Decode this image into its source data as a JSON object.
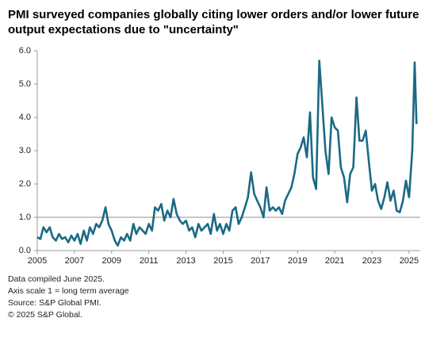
{
  "chart_data": {
    "type": "line",
    "title": [
      "PMI surveyed companies globally citing lower orders and/or lower future",
      "output expectations due to \"uncertainty\""
    ],
    "notes": [
      "Data compiled June 2025.",
      "Axis scale 1 = long term average",
      "Source: S&P Global PMI.",
      "© 2025 S&P Global."
    ],
    "x": [
      2005.0,
      2005.17,
      2005.33,
      2005.5,
      2005.67,
      2005.83,
      2006.0,
      2006.17,
      2006.33,
      2006.5,
      2006.67,
      2006.83,
      2007.0,
      2007.17,
      2007.33,
      2007.5,
      2007.67,
      2007.83,
      2008.0,
      2008.17,
      2008.33,
      2008.5,
      2008.67,
      2008.83,
      2009.0,
      2009.17,
      2009.33,
      2009.5,
      2009.67,
      2009.83,
      2010.0,
      2010.17,
      2010.33,
      2010.5,
      2010.67,
      2010.83,
      2011.0,
      2011.17,
      2011.33,
      2011.5,
      2011.67,
      2011.83,
      2012.0,
      2012.17,
      2012.33,
      2012.5,
      2012.67,
      2012.83,
      2013.0,
      2013.17,
      2013.33,
      2013.5,
      2013.67,
      2013.83,
      2014.0,
      2014.17,
      2014.33,
      2014.5,
      2014.67,
      2014.83,
      2015.0,
      2015.17,
      2015.33,
      2015.5,
      2015.67,
      2015.83,
      2016.0,
      2016.17,
      2016.33,
      2016.5,
      2016.67,
      2016.83,
      2017.0,
      2017.17,
      2017.33,
      2017.5,
      2017.67,
      2017.83,
      2018.0,
      2018.17,
      2018.33,
      2018.5,
      2018.67,
      2018.83,
      2019.0,
      2019.17,
      2019.33,
      2019.5,
      2019.67,
      2019.83,
      2020.0,
      2020.17,
      2020.33,
      2020.5,
      2020.67,
      2020.83,
      2021.0,
      2021.17,
      2021.33,
      2021.5,
      2021.67,
      2021.83,
      2022.0,
      2022.17,
      2022.33,
      2022.5,
      2022.67,
      2022.83,
      2023.0,
      2023.17,
      2023.33,
      2023.5,
      2023.67,
      2023.83,
      2024.0,
      2024.17,
      2024.33,
      2024.5,
      2024.67,
      2024.83,
      2025.0,
      2025.17,
      2025.3,
      2025.4
    ],
    "series": [
      {
        "color": "#1a6a84",
        "values": [
          0.4,
          0.35,
          0.7,
          0.55,
          0.7,
          0.4,
          0.3,
          0.5,
          0.35,
          0.4,
          0.25,
          0.45,
          0.3,
          0.5,
          0.2,
          0.6,
          0.3,
          0.7,
          0.5,
          0.8,
          0.7,
          0.9,
          1.3,
          0.8,
          0.6,
          0.3,
          0.15,
          0.4,
          0.3,
          0.5,
          0.3,
          0.8,
          0.5,
          0.7,
          0.6,
          0.5,
          0.8,
          0.6,
          1.3,
          1.2,
          1.4,
          0.9,
          1.2,
          1.0,
          1.55,
          1.1,
          0.9,
          0.8,
          0.9,
          0.6,
          0.7,
          0.4,
          0.8,
          0.6,
          0.7,
          0.8,
          0.5,
          1.1,
          0.6,
          0.8,
          0.5,
          0.8,
          0.6,
          1.2,
          1.3,
          0.8,
          1.0,
          1.3,
          1.6,
          2.35,
          1.7,
          1.5,
          1.3,
          1.0,
          1.9,
          1.2,
          1.3,
          1.2,
          1.3,
          1.1,
          1.5,
          1.7,
          1.9,
          2.3,
          2.9,
          3.1,
          3.4,
          2.8,
          4.15,
          2.2,
          1.85,
          5.7,
          4.4,
          3.0,
          2.3,
          4.0,
          3.7,
          3.6,
          2.5,
          2.2,
          1.45,
          2.3,
          2.5,
          4.6,
          3.3,
          3.3,
          3.6,
          2.7,
          1.8,
          2.0,
          1.5,
          1.25,
          1.6,
          2.05,
          1.5,
          1.8,
          1.2,
          1.15,
          1.5,
          2.1,
          1.6,
          3.0,
          5.65,
          3.8
        ]
      }
    ],
    "xlim": [
      2005,
      2025.6
    ],
    "xticks": [
      2005,
      2007,
      2009,
      2011,
      2013,
      2015,
      2017,
      2019,
      2021,
      2023,
      2025
    ],
    "ylim": [
      0,
      6
    ],
    "yticks": [
      {
        "value": 0,
        "label": "0.0"
      },
      {
        "value": 1,
        "label": "1.0"
      },
      {
        "value": 2,
        "label": "2.0"
      },
      {
        "value": 3,
        "label": "3.0"
      },
      {
        "value": 4,
        "label": "4.0"
      },
      {
        "value": 5,
        "label": "5.0"
      },
      {
        "value": 6,
        "label": "6.0"
      }
    ],
    "reference_line": 1
  }
}
